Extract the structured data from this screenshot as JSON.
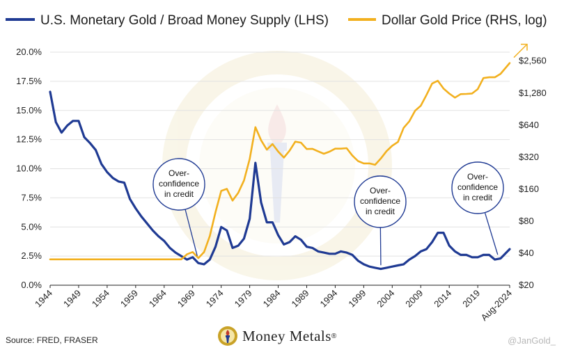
{
  "chart_data": {
    "type": "line",
    "legend": [
      {
        "name": "U.S. Monetary Gold / Broad Money Supply (LHS)",
        "color": "#1f3a93"
      },
      {
        "name": "Dollar Gold Price (RHS, log)",
        "color": "#f2b01e"
      }
    ],
    "x_range": [
      1944,
      2024.6
    ],
    "x_ticks": [
      {
        "v": 1944,
        "label": "1944"
      },
      {
        "v": 1949,
        "label": "1949"
      },
      {
        "v": 1954,
        "label": "1954"
      },
      {
        "v": 1959,
        "label": "1959"
      },
      {
        "v": 1964,
        "label": "1964"
      },
      {
        "v": 1969,
        "label": "1969"
      },
      {
        "v": 1974,
        "label": "1974"
      },
      {
        "v": 1979,
        "label": "1979"
      },
      {
        "v": 1984,
        "label": "1984"
      },
      {
        "v": 1989,
        "label": "1989"
      },
      {
        "v": 1994,
        "label": "1994"
      },
      {
        "v": 1999,
        "label": "1999"
      },
      {
        "v": 2004,
        "label": "2004"
      },
      {
        "v": 2009,
        "label": "2009"
      },
      {
        "v": 2014,
        "label": "2014"
      },
      {
        "v": 2019,
        "label": "2019"
      },
      {
        "v": 2024.6,
        "label": "Aug-2024"
      }
    ],
    "y_left": {
      "range": [
        0,
        20
      ],
      "ticks": [
        0,
        2.5,
        5,
        7.5,
        10,
        12.5,
        15,
        17.5,
        20
      ],
      "labels": [
        "0.0%",
        "2.5%",
        "5.0%",
        "7.5%",
        "10.0%",
        "12.5%",
        "15.0%",
        "17.5%",
        "20.0%"
      ]
    },
    "y_right": {
      "scale": "log",
      "range": [
        20,
        3100
      ],
      "ticks": [
        20,
        40,
        80,
        160,
        320,
        640,
        1280,
        2560
      ],
      "labels": [
        "$20",
        "$40",
        "$80",
        "$160",
        "$320",
        "$640",
        "$1,280",
        "$2,560"
      ]
    },
    "series": [
      {
        "name": "U.S. Monetary Gold / Broad Money Supply (LHS)",
        "color": "#1f3a93",
        "axis": "left",
        "points": [
          [
            1944,
            16.6
          ],
          [
            1945,
            14.0
          ],
          [
            1946,
            13.1
          ],
          [
            1947,
            13.7
          ],
          [
            1948,
            14.1
          ],
          [
            1949,
            14.1
          ],
          [
            1950,
            12.7
          ],
          [
            1951,
            12.2
          ],
          [
            1952,
            11.6
          ],
          [
            1953,
            10.4
          ],
          [
            1954,
            9.7
          ],
          [
            1955,
            9.2
          ],
          [
            1956,
            8.9
          ],
          [
            1957,
            8.8
          ],
          [
            1958,
            7.4
          ],
          [
            1959,
            6.6
          ],
          [
            1960,
            5.9
          ],
          [
            1961,
            5.3
          ],
          [
            1962,
            4.7
          ],
          [
            1963,
            4.2
          ],
          [
            1964,
            3.8
          ],
          [
            1965,
            3.2
          ],
          [
            1966,
            2.8
          ],
          [
            1967,
            2.5
          ],
          [
            1968,
            2.2
          ],
          [
            1969,
            2.4
          ],
          [
            1970,
            1.9
          ],
          [
            1971,
            1.8
          ],
          [
            1972,
            2.2
          ],
          [
            1973,
            3.3
          ],
          [
            1974,
            5.0
          ],
          [
            1975,
            4.7
          ],
          [
            1976,
            3.2
          ],
          [
            1977,
            3.4
          ],
          [
            1978,
            4.0
          ],
          [
            1979,
            5.7
          ],
          [
            1980,
            10.5
          ],
          [
            1981,
            7.1
          ],
          [
            1982,
            5.4
          ],
          [
            1983,
            5.4
          ],
          [
            1984,
            4.3
          ],
          [
            1985,
            3.5
          ],
          [
            1986,
            3.7
          ],
          [
            1987,
            4.2
          ],
          [
            1988,
            3.9
          ],
          [
            1989,
            3.3
          ],
          [
            1990,
            3.2
          ],
          [
            1991,
            2.9
          ],
          [
            1992,
            2.8
          ],
          [
            1993,
            2.7
          ],
          [
            1994,
            2.7
          ],
          [
            1995,
            2.9
          ],
          [
            1996,
            2.8
          ],
          [
            1997,
            2.6
          ],
          [
            1998,
            2.1
          ],
          [
            1999,
            1.8
          ],
          [
            2000,
            1.6
          ],
          [
            2001,
            1.5
          ],
          [
            2002,
            1.4
          ],
          [
            2003,
            1.5
          ],
          [
            2004,
            1.6
          ],
          [
            2005,
            1.7
          ],
          [
            2006,
            1.8
          ],
          [
            2007,
            2.2
          ],
          [
            2008,
            2.5
          ],
          [
            2009,
            2.9
          ],
          [
            2010,
            3.1
          ],
          [
            2011,
            3.7
          ],
          [
            2012,
            4.5
          ],
          [
            2013,
            4.5
          ],
          [
            2014,
            3.4
          ],
          [
            2015,
            2.9
          ],
          [
            2016,
            2.6
          ],
          [
            2017,
            2.6
          ],
          [
            2018,
            2.4
          ],
          [
            2019,
            2.4
          ],
          [
            2020,
            2.6
          ],
          [
            2021,
            2.6
          ],
          [
            2022,
            2.2
          ],
          [
            2023,
            2.3
          ],
          [
            2024.6,
            3.1
          ]
        ]
      },
      {
        "name": "Dollar Gold Price (RHS, log)",
        "color": "#f2b01e",
        "axis": "right",
        "points": [
          [
            1944,
            35
          ],
          [
            1967,
            35
          ],
          [
            1968,
            39
          ],
          [
            1969,
            41
          ],
          [
            1970,
            36
          ],
          [
            1971,
            41
          ],
          [
            1972,
            58
          ],
          [
            1973,
            97
          ],
          [
            1974,
            154
          ],
          [
            1975,
            161
          ],
          [
            1976,
            125
          ],
          [
            1977,
            148
          ],
          [
            1978,
            193
          ],
          [
            1979,
            307
          ],
          [
            1980,
            612
          ],
          [
            1981,
            460
          ],
          [
            1982,
            376
          ],
          [
            1983,
            424
          ],
          [
            1984,
            361
          ],
          [
            1985,
            317
          ],
          [
            1986,
            368
          ],
          [
            1987,
            447
          ],
          [
            1988,
            437
          ],
          [
            1989,
            381
          ],
          [
            1990,
            383
          ],
          [
            1991,
            362
          ],
          [
            1992,
            344
          ],
          [
            1993,
            360
          ],
          [
            1994,
            384
          ],
          [
            1995,
            384
          ],
          [
            1996,
            388
          ],
          [
            1997,
            331
          ],
          [
            1998,
            294
          ],
          [
            1999,
            279
          ],
          [
            2000,
            279
          ],
          [
            2001,
            271
          ],
          [
            2002,
            310
          ],
          [
            2003,
            364
          ],
          [
            2004,
            409
          ],
          [
            2005,
            444
          ],
          [
            2006,
            603
          ],
          [
            2007,
            695
          ],
          [
            2008,
            872
          ],
          [
            2009,
            972
          ],
          [
            2010,
            1225
          ],
          [
            2011,
            1572
          ],
          [
            2012,
            1669
          ],
          [
            2013,
            1411
          ],
          [
            2014,
            1266
          ],
          [
            2015,
            1160
          ],
          [
            2016,
            1251
          ],
          [
            2017,
            1257
          ],
          [
            2018,
            1268
          ],
          [
            2019,
            1393
          ],
          [
            2020,
            1770
          ],
          [
            2021,
            1800
          ],
          [
            2022,
            1800
          ],
          [
            2023,
            1940
          ],
          [
            2024.6,
            2450
          ]
        ]
      }
    ],
    "annotations": [
      {
        "lines": [
          "Over-",
          "confidence",
          "in credit"
        ],
        "target": [
          1969.8,
          2.4
        ]
      },
      {
        "lines": [
          "Over-",
          "confidence",
          "in credit"
        ],
        "target": [
          2002,
          1.6
        ]
      },
      {
        "lines": [
          "Over-",
          "confidence",
          "in credit"
        ],
        "target": [
          2022.5,
          2.5
        ]
      }
    ]
  },
  "footer": {
    "source": "Source: FRED, FRASER",
    "brand": "Money Metals",
    "brand_mark": "®",
    "handle": "@JanGold_"
  }
}
